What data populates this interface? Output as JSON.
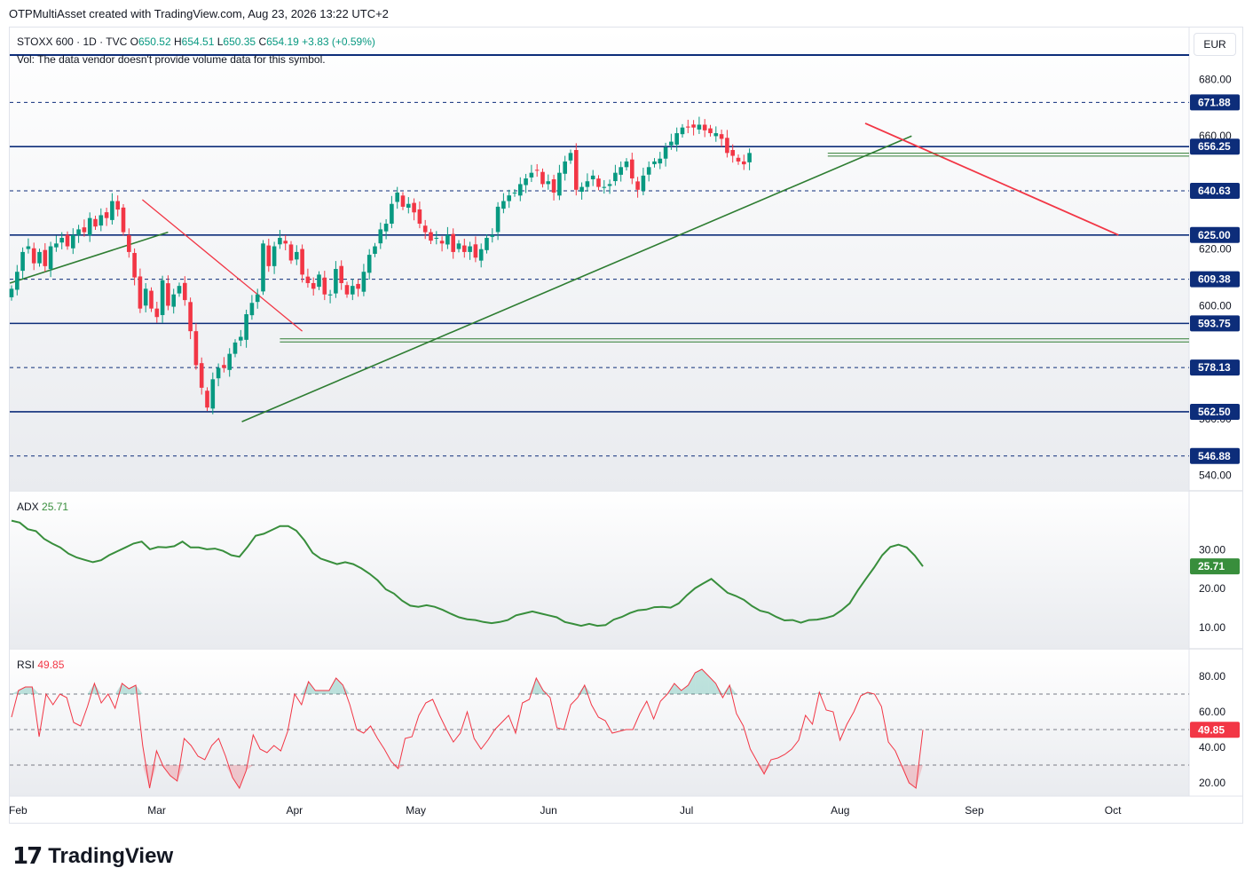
{
  "header": {
    "credit": "OTPMultiAsset created with TradingView.com, Aug 23, 2026 13:22 UTC+2"
  },
  "symbol": {
    "title": "STOXX 600 · 1D · TVC",
    "o_label": "O",
    "o": "650.52",
    "h_label": "H",
    "h": "654.51",
    "l_label": "L",
    "l": "650.35",
    "c_label": "C",
    "c": "654.19",
    "change": "+3.83 (+0.59%)"
  },
  "vol_note": "Vol: The data vendor doesn't provide volume data for this symbol.",
  "currency": "EUR",
  "brand": {
    "name": "TradingView"
  },
  "colors": {
    "up": "#089981",
    "down": "#f23645",
    "level": "#0d2d7a",
    "trend_up": "#2e7d32",
    "trend_down": "#f23645",
    "adx": "#388e3c",
    "rsi": "#f23645"
  },
  "chart_data": [
    {
      "type": "candlestick",
      "name": "STOXX 600",
      "ylim": [
        533,
        688
      ],
      "y_ticks": [
        "680.00",
        "660.00",
        "620.00",
        "600.00",
        "560.00",
        "540.00"
      ],
      "levels": [
        {
          "value": 671.88,
          "label": "671.88",
          "style": "dashed"
        },
        {
          "value": 656.25,
          "label": "656.25",
          "style": "solid"
        },
        {
          "value": 640.63,
          "label": "640.63",
          "style": "dashed"
        },
        {
          "value": 625.0,
          "label": "625.00",
          "style": "solid"
        },
        {
          "value": 609.38,
          "label": "609.38",
          "style": "dashed"
        },
        {
          "value": 593.75,
          "label": "593.75",
          "style": "solid"
        },
        {
          "value": 578.13,
          "label": "578.13",
          "style": "dashed"
        },
        {
          "value": 562.5,
          "label": "562.50",
          "style": "solid"
        },
        {
          "value": 546.88,
          "label": "546.88",
          "style": "dashed"
        }
      ],
      "x_axis_labels": [
        "Feb",
        "Mar",
        "Apr",
        "May",
        "Jun",
        "Jul",
        "Aug",
        "Sep",
        "Oct"
      ],
      "closes": [
        606,
        612,
        619,
        621,
        615,
        619,
        614,
        621,
        622,
        624,
        621,
        625,
        627,
        626,
        631,
        628,
        632,
        631,
        637,
        634,
        626,
        619,
        610,
        599,
        606,
        599,
        596,
        609,
        600,
        604,
        607,
        602,
        591,
        579,
        571,
        564,
        574,
        578,
        578,
        583,
        587,
        589,
        597,
        601,
        604,
        622,
        614,
        621,
        624,
        622,
        616,
        619,
        611,
        608,
        606,
        611,
        604,
        604,
        613,
        608,
        604,
        607,
        606,
        612,
        618,
        621,
        627,
        629,
        636,
        640,
        635,
        636,
        633,
        629,
        626,
        623,
        624,
        622,
        625,
        619,
        622,
        619,
        621,
        617,
        620,
        624,
        625,
        635,
        637,
        639,
        640,
        643,
        645,
        647,
        648,
        643,
        644,
        640,
        647,
        651,
        654,
        641,
        642,
        644,
        646,
        642,
        642,
        643,
        647,
        649,
        651,
        645,
        641,
        646,
        649,
        651,
        652,
        656,
        658,
        661,
        663,
        663,
        663,
        664,
        662,
        661,
        661,
        659,
        654,
        653,
        651,
        650,
        654
      ]
    },
    {
      "type": "line",
      "name": "ADX",
      "value_label": "25.71",
      "ylim": [
        7,
        39
      ],
      "y_ticks": [
        "30.00",
        "20.00",
        "10.00"
      ],
      "values": [
        37.5,
        37,
        35.3,
        34.8,
        32.8,
        31.6,
        30.6,
        29,
        28,
        27.4,
        26.8,
        27.3,
        28.6,
        29.6,
        30.6,
        31.6,
        32.1,
        30.1,
        30.7,
        30.6,
        30.9,
        32.1,
        30.6,
        30.6,
        30.1,
        30.3,
        29.7,
        28.6,
        28.2,
        30.7,
        33.6,
        34.1,
        35.1,
        36.1,
        36.1,
        34.9,
        32.4,
        29.2,
        27.7,
        27,
        26.3,
        26.8,
        26.3,
        25.2,
        23.8,
        22.1,
        19.8,
        18.7,
        16.9,
        15.6,
        15.3,
        15.7,
        15.3,
        14.5,
        13.5,
        12.6,
        12.1,
        11.9,
        11.4,
        11.1,
        11.4,
        11.9,
        13.1,
        13.6,
        14.1,
        13.6,
        13.1,
        12.6,
        11.4,
        10.9,
        10.4,
        10.9,
        10.4,
        10.6,
        12,
        12.7,
        13.7,
        14.4,
        14.6,
        15.2,
        15.3,
        15.1,
        16.2,
        18.3,
        20.1,
        21.3,
        22.5,
        20.7,
        18.9,
        18.1,
        17.1,
        15.5,
        14.3,
        13.8,
        12.7,
        11.8,
        11.9,
        11.2,
        11.9,
        12,
        12.4,
        13,
        14.4,
        16.2,
        19.5,
        22.5,
        25.4,
        28.6,
        30.7,
        31.3,
        30.6,
        28.5,
        25.71
      ]
    },
    {
      "type": "line",
      "name": "RSI",
      "value_label": "49.85",
      "ylim": [
        12,
        90
      ],
      "y_ticks": [
        "80.00",
        "60.00",
        "40.00",
        "20.00"
      ],
      "bands": [
        30,
        50,
        70
      ],
      "values": [
        57,
        72,
        74,
        74,
        46,
        70,
        64,
        70,
        68,
        54,
        52,
        63,
        76,
        65,
        70,
        62,
        76,
        73,
        75,
        41,
        17,
        38,
        29,
        24,
        21,
        45,
        41,
        35,
        33,
        41,
        45,
        35,
        23,
        17,
        27,
        47,
        39,
        37,
        41,
        38,
        49,
        70,
        64,
        77,
        72,
        72,
        72,
        79,
        75,
        64,
        50,
        48,
        52,
        45,
        39,
        32,
        28,
        45,
        46,
        58,
        65,
        67,
        58,
        50,
        43,
        48,
        60,
        45,
        39,
        44,
        50,
        54,
        58,
        48,
        65,
        67,
        79,
        72,
        68,
        51,
        50,
        64,
        68,
        75,
        64,
        57,
        55,
        48,
        49,
        50,
        50,
        59,
        66,
        56,
        66,
        70,
        76,
        72,
        75,
        82,
        84,
        80,
        76,
        68,
        75,
        59,
        52,
        39,
        32,
        25,
        33,
        34,
        36,
        39,
        44,
        58,
        53,
        71,
        61,
        60,
        44,
        53,
        60,
        69,
        71,
        70,
        63,
        43,
        38,
        29,
        20,
        17,
        49.85
      ]
    }
  ]
}
